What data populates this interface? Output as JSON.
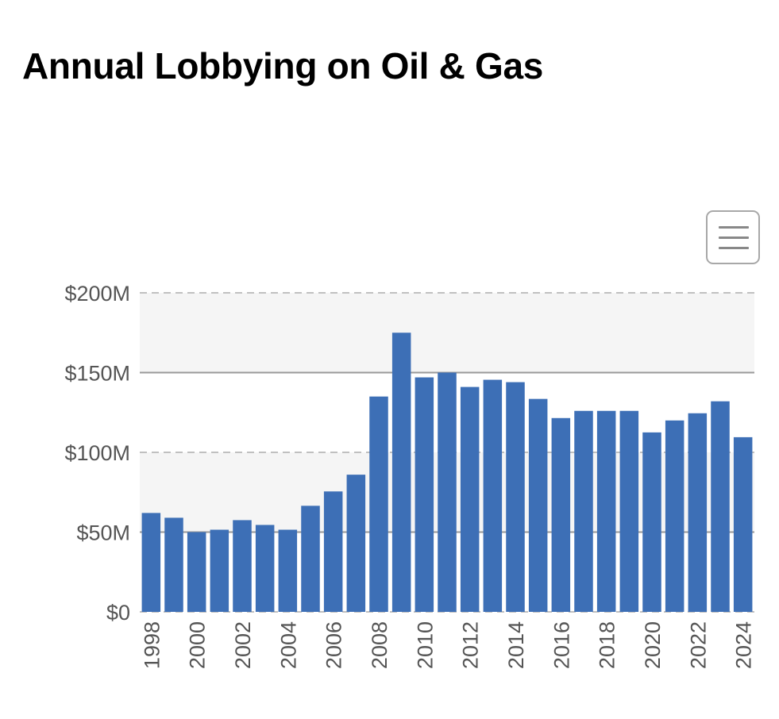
{
  "page": {
    "title": "Annual Lobbying on Oil & Gas"
  },
  "menu": {
    "icon": "hamburger-menu-icon"
  },
  "chart_data": {
    "type": "bar",
    "title": "Annual Lobbying on Oil & Gas",
    "xlabel": "",
    "ylabel": "",
    "ylim": [
      0,
      200000000
    ],
    "yticks": [
      0,
      50000000,
      100000000,
      150000000,
      200000000
    ],
    "ytick_labels": [
      "$0",
      "$50M",
      "$100M",
      "$150M",
      "$200M"
    ],
    "categories": [
      "1998",
      "1999",
      "2000",
      "2001",
      "2002",
      "2003",
      "2004",
      "2005",
      "2006",
      "2007",
      "2008",
      "2009",
      "2010",
      "2011",
      "2012",
      "2013",
      "2014",
      "2015",
      "2016",
      "2017",
      "2018",
      "2019",
      "2020",
      "2021",
      "2022",
      "2023",
      "2024"
    ],
    "xtick_labels": [
      "1998",
      "2000",
      "2002",
      "2004",
      "2006",
      "2008",
      "2010",
      "2012",
      "2014",
      "2016",
      "2018",
      "2020",
      "2022",
      "2024"
    ],
    "values": [
      62000000,
      59000000,
      50000000,
      51500000,
      57500000,
      54500000,
      51500000,
      66500000,
      75500000,
      86000000,
      135000000,
      175000000,
      147000000,
      150000000,
      141000000,
      145500000,
      144000000,
      133500000,
      121500000,
      126000000,
      126000000,
      126000000,
      112500000,
      120000000,
      124500000,
      132000000,
      109500000
    ],
    "grid": true,
    "colors": {
      "bar": "#3d6fb6",
      "band": "#f5f5f5",
      "grid_dashed": "#c0c0c0",
      "grid_solid": "#999999",
      "axis_text": "#555555"
    }
  }
}
